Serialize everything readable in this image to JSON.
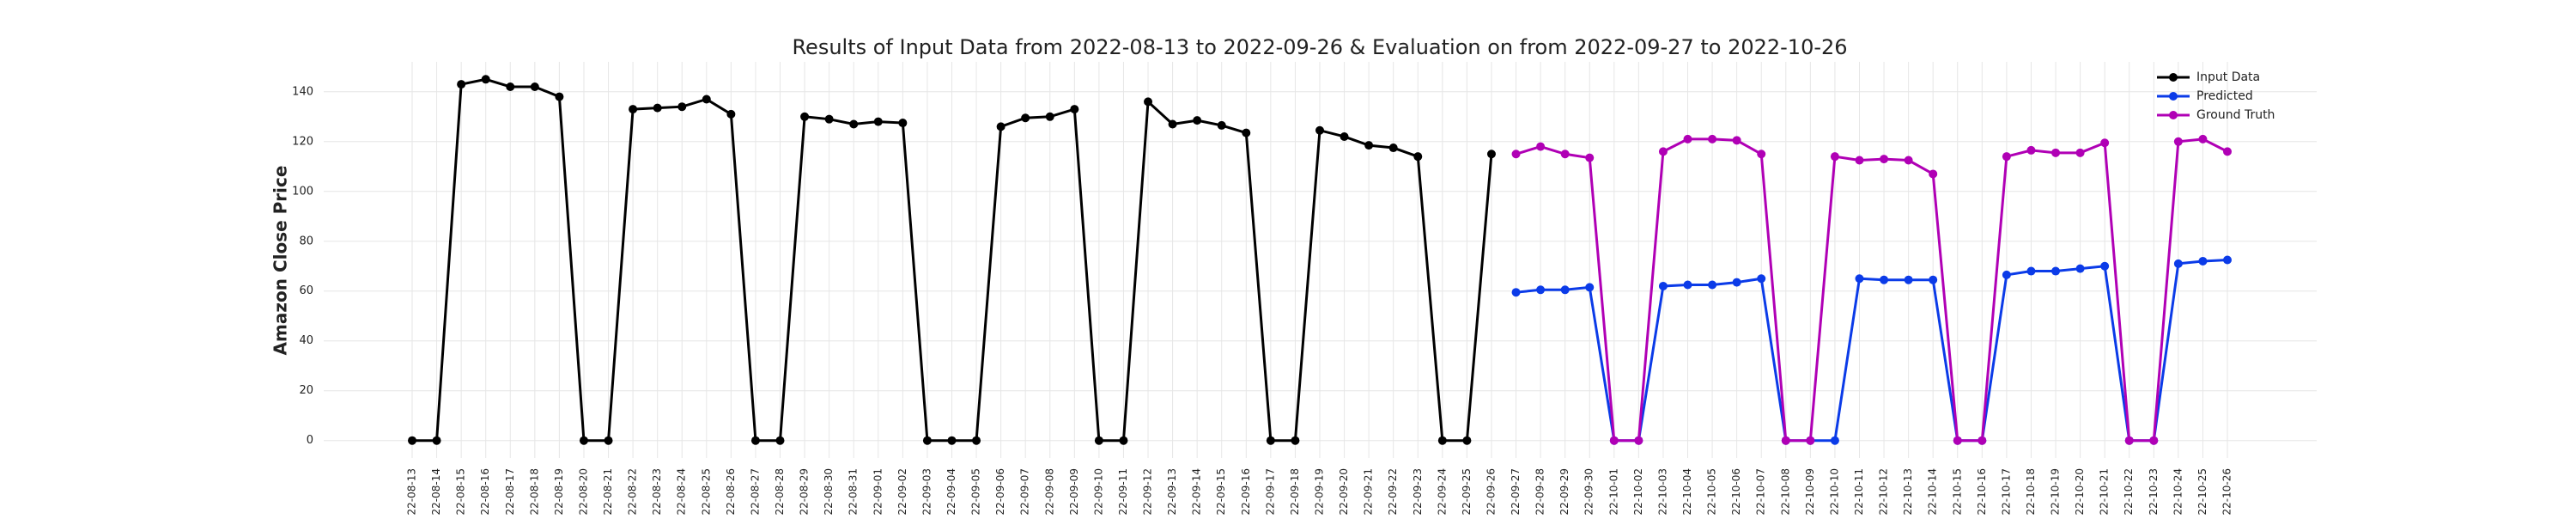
{
  "chart_data": {
    "type": "line",
    "title": "Results of Input Data from 2022-08-13 to 2022-09-26 & Evaluation on from 2022-09-27 to 2022-10-26",
    "ylabel": "Amazon Close Price",
    "categories": [
      "2022-08-13",
      "2022-08-14",
      "2022-08-15",
      "2022-08-16",
      "2022-08-17",
      "2022-08-18",
      "2022-08-19",
      "2022-08-20",
      "2022-08-21",
      "2022-08-22",
      "2022-08-23",
      "2022-08-24",
      "2022-08-25",
      "2022-08-26",
      "2022-08-27",
      "2022-08-28",
      "2022-08-29",
      "2022-08-30",
      "2022-08-31",
      "2022-09-01",
      "2022-09-02",
      "2022-09-03",
      "2022-09-04",
      "2022-09-05",
      "2022-09-06",
      "2022-09-07",
      "2022-09-08",
      "2022-09-09",
      "2022-09-10",
      "2022-09-11",
      "2022-09-12",
      "2022-09-13",
      "2022-09-14",
      "2022-09-15",
      "2022-09-16",
      "2022-09-17",
      "2022-09-18",
      "2022-09-19",
      "2022-09-20",
      "2022-09-21",
      "2022-09-22",
      "2022-09-23",
      "2022-09-24",
      "2022-09-25",
      "2022-09-26",
      "2022-09-27",
      "2022-09-28",
      "2022-09-29",
      "2022-09-30",
      "2022-10-01",
      "2022-10-02",
      "2022-10-03",
      "2022-10-04",
      "2022-10-05",
      "2022-10-06",
      "2022-10-07",
      "2022-10-08",
      "2022-10-09",
      "2022-10-10",
      "2022-10-11",
      "2022-10-12",
      "2022-10-13",
      "2022-10-14",
      "2022-10-15",
      "2022-10-16",
      "2022-10-17",
      "2022-10-18",
      "2022-10-19",
      "2022-10-20",
      "2022-10-21",
      "2022-10-22",
      "2022-10-23",
      "2022-10-24",
      "2022-10-25",
      "2022-10-26"
    ],
    "series": [
      {
        "name": "Input Data",
        "color": "#000000",
        "values": [
          0,
          0,
          143,
          145,
          142,
          142,
          138,
          0,
          0,
          133,
          133.5,
          134,
          137,
          131,
          0,
          0,
          130,
          129,
          127,
          128,
          127.5,
          0,
          0,
          0,
          126,
          129.5,
          130,
          133,
          0,
          0,
          136,
          127,
          128.5,
          126.5,
          123.5,
          0,
          0,
          124.5,
          122,
          118.5,
          117.5,
          114,
          0,
          0,
          115,
          null,
          null,
          null,
          null,
          null,
          null,
          null,
          null,
          null,
          null,
          null,
          null,
          null,
          null,
          null,
          null,
          null,
          null,
          null,
          null,
          null,
          null,
          null,
          null,
          null,
          null,
          null,
          null,
          null,
          null
        ]
      },
      {
        "name": "Predicted",
        "color": "#0b3be8",
        "values": [
          null,
          null,
          null,
          null,
          null,
          null,
          null,
          null,
          null,
          null,
          null,
          null,
          null,
          null,
          null,
          null,
          null,
          null,
          null,
          null,
          null,
          null,
          null,
          null,
          null,
          null,
          null,
          null,
          null,
          null,
          null,
          null,
          null,
          null,
          null,
          null,
          null,
          null,
          null,
          null,
          null,
          null,
          null,
          null,
          null,
          59.5,
          60.5,
          60.5,
          61.5,
          0,
          0,
          62,
          62.5,
          62.5,
          63.5,
          65,
          0,
          0,
          0,
          65,
          64.5,
          64.5,
          64.5,
          0,
          0,
          66.5,
          68,
          68,
          69,
          70,
          0,
          0,
          71,
          72,
          72.5
        ]
      },
      {
        "name": "Ground Truth",
        "color": "#b000b5",
        "values": [
          null,
          null,
          null,
          null,
          null,
          null,
          null,
          null,
          null,
          null,
          null,
          null,
          null,
          null,
          null,
          null,
          null,
          null,
          null,
          null,
          null,
          null,
          null,
          null,
          null,
          null,
          null,
          null,
          null,
          null,
          null,
          null,
          null,
          null,
          null,
          null,
          null,
          null,
          null,
          null,
          null,
          null,
          null,
          null,
          null,
          115,
          118,
          115,
          113.5,
          0,
          0,
          116,
          121,
          121,
          120.5,
          115,
          0,
          0,
          114,
          112.5,
          113,
          112.5,
          107,
          0,
          0,
          114,
          116.5,
          115.5,
          115.5,
          119.5,
          0,
          0,
          120,
          121,
          116
        ]
      }
    ],
    "ylim": [
      -7,
      152
    ],
    "yticks": [
      0,
      20,
      40,
      60,
      80,
      100,
      120,
      140
    ],
    "grid": true,
    "legend": "upper right"
  }
}
